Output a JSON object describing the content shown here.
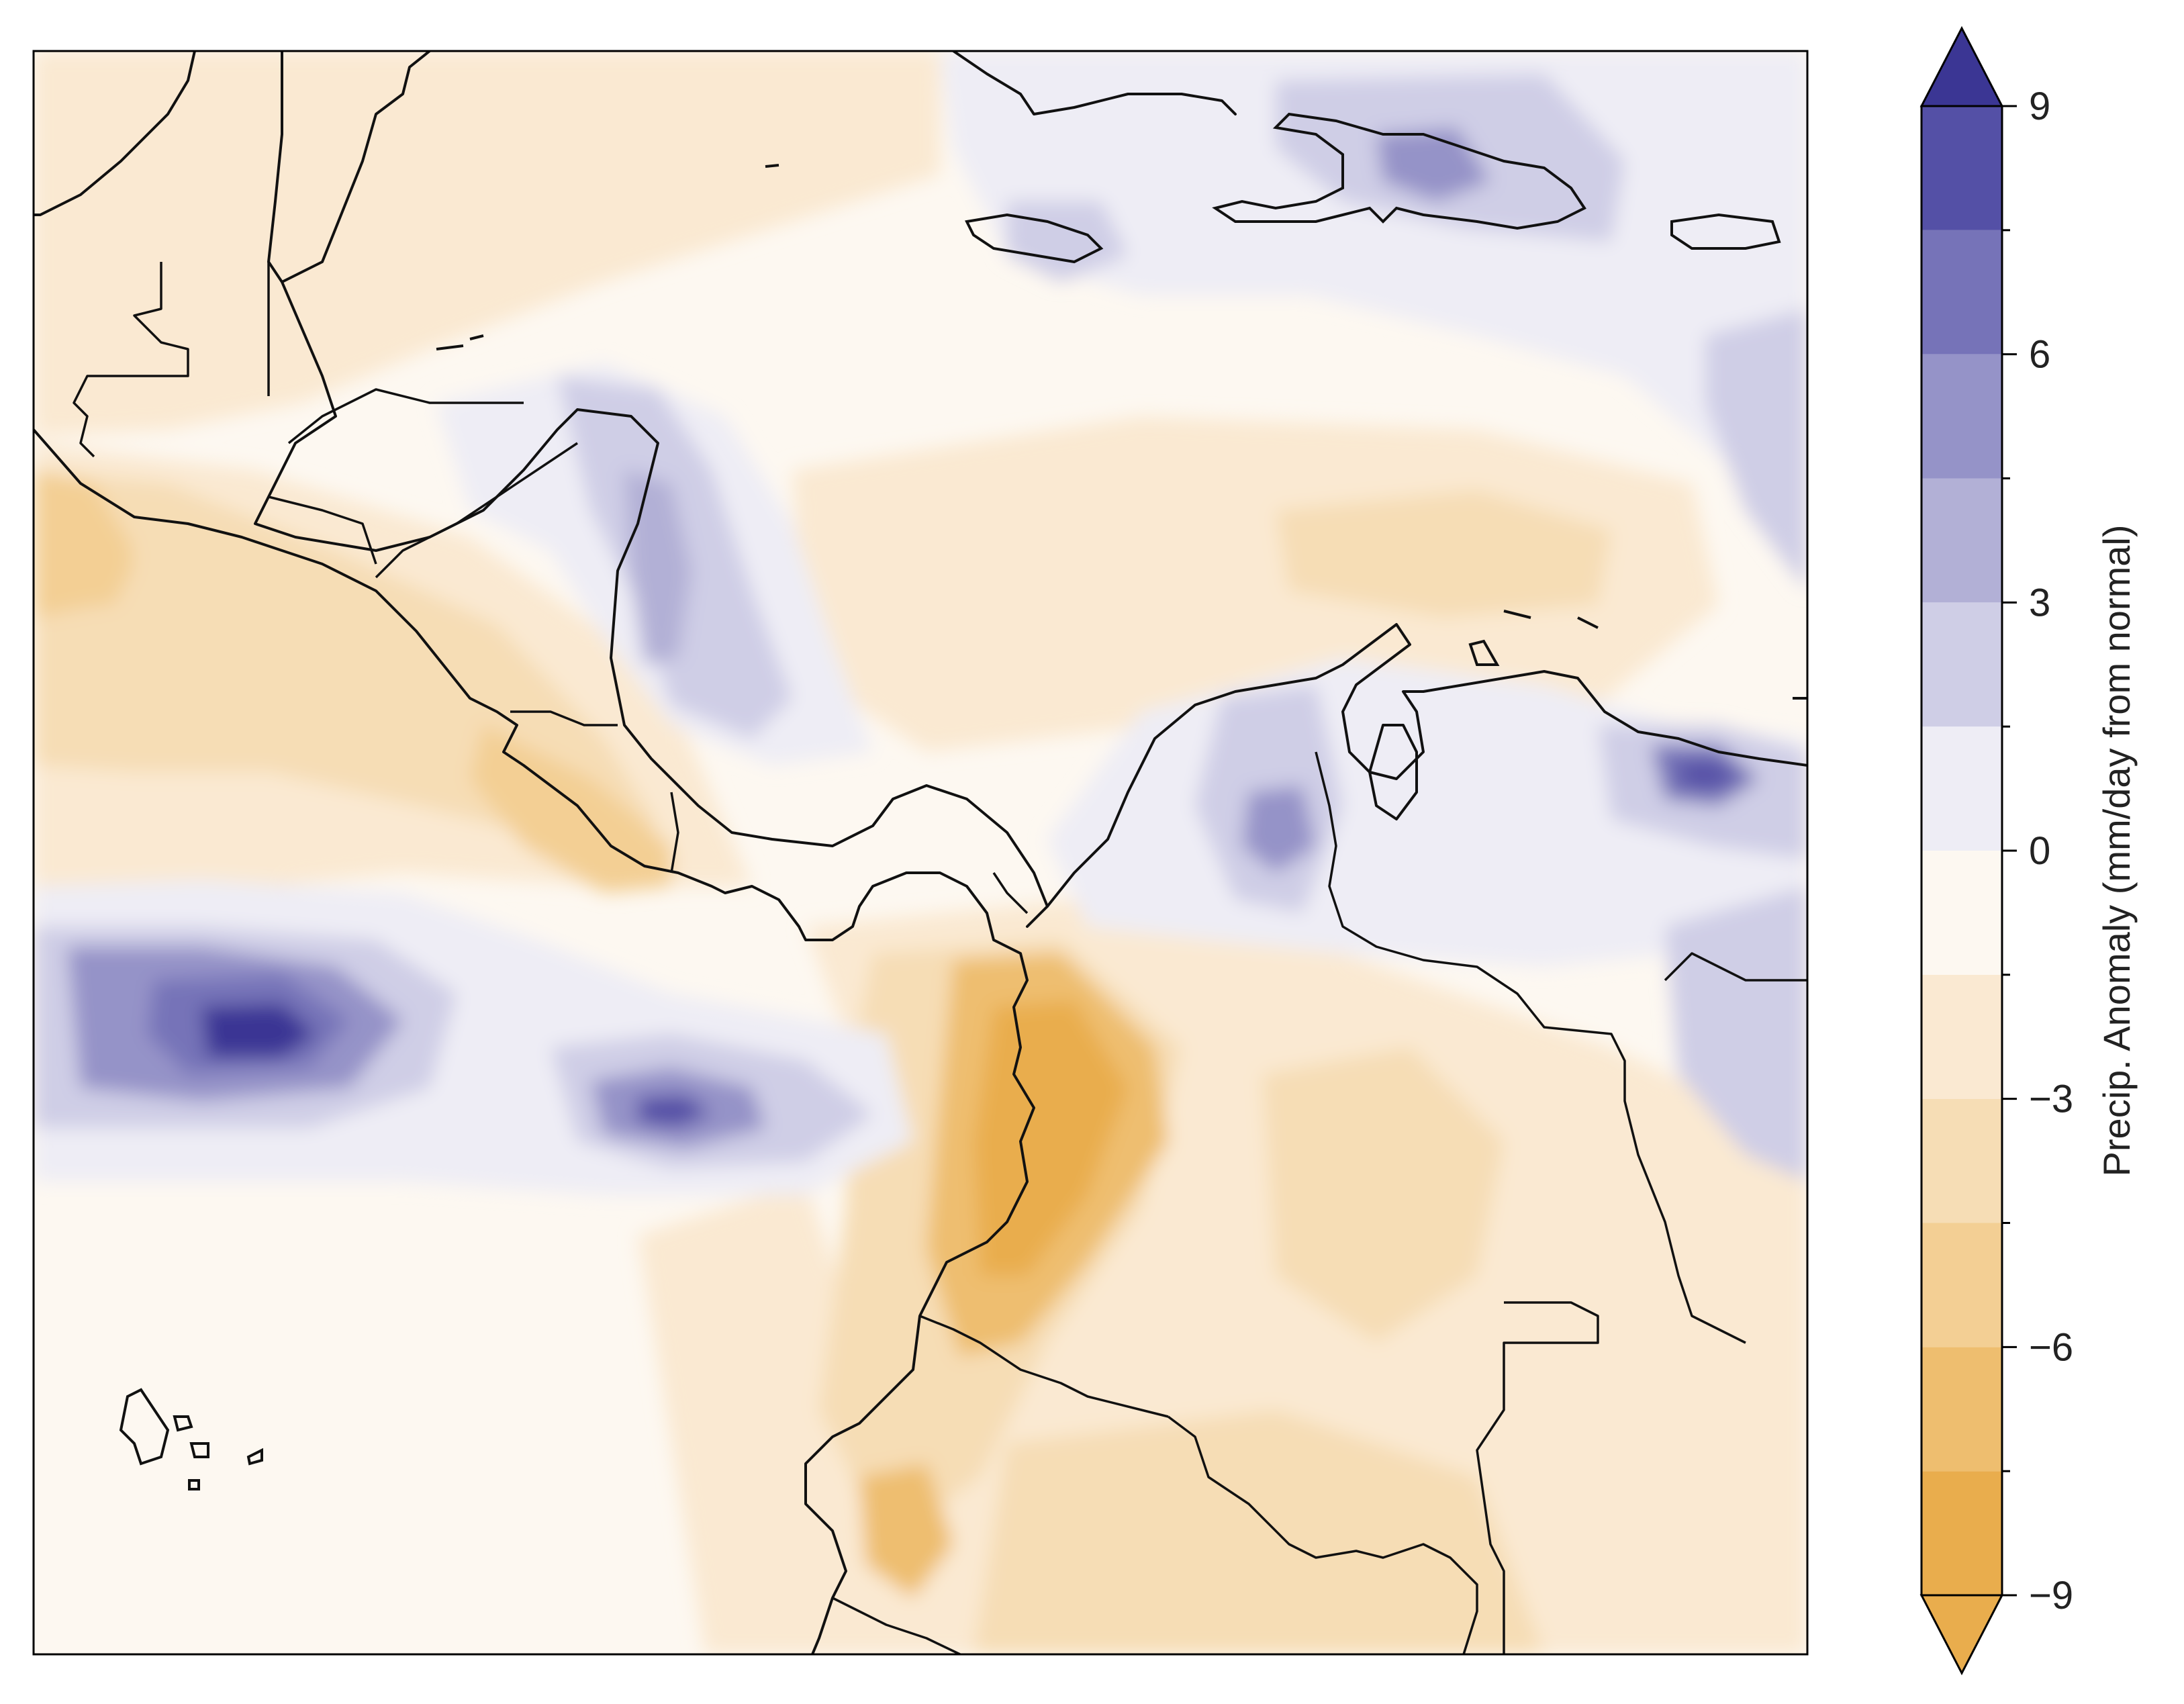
{
  "colorbar": {
    "title": "Precip. Anomaly (mm/day from normal)",
    "ticks": [
      {
        "value": 9,
        "label": "9"
      },
      {
        "value": 6,
        "label": "6"
      },
      {
        "value": 3,
        "label": "3"
      },
      {
        "value": 0,
        "label": "0"
      },
      {
        "value": -3,
        "label": "−3"
      },
      {
        "value": -6,
        "label": "−6"
      },
      {
        "value": -9,
        "label": "−9"
      }
    ],
    "range": [
      -9,
      9
    ],
    "extend": "both",
    "bins": [
      {
        "from": -9,
        "to": -7.5,
        "color": "#e9ad4d"
      },
      {
        "from": -7.5,
        "to": -6,
        "color": "#eebe6f"
      },
      {
        "from": -6,
        "to": -4.5,
        "color": "#f3cf94"
      },
      {
        "from": -4.5,
        "to": -3,
        "color": "#f6ddb5"
      },
      {
        "from": -3,
        "to": -1.5,
        "color": "#fae9d2"
      },
      {
        "from": -1.5,
        "to": 0,
        "color": "#fdf8f1"
      },
      {
        "from": 0,
        "to": 1.5,
        "color": "#eeedf5"
      },
      {
        "from": 1.5,
        "to": 3,
        "color": "#cfcee6"
      },
      {
        "from": 3,
        "to": 4.5,
        "color": "#b2b0d6"
      },
      {
        "from": 4.5,
        "to": 6,
        "color": "#9593c8"
      },
      {
        "from": 6,
        "to": 7.5,
        "color": "#7673b8"
      },
      {
        "from": 7.5,
        "to": 9,
        "color": "#5450a6"
      }
    ],
    "under_color": "#e9ad4d",
    "over_color": "#3b3694"
  },
  "map": {
    "region": "Central America, Caribbean and northwestern South America",
    "field": "precipitation anomaly",
    "coastlines": true,
    "borders": true
  }
}
